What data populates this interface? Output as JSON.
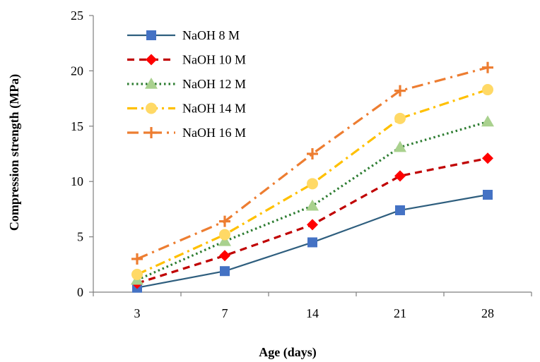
{
  "chart_data": {
    "type": "line",
    "title": "",
    "xlabel": "Age (days)",
    "ylabel": "Compression strength (MPa)",
    "categories": [
      "3",
      "7",
      "14",
      "21",
      "28"
    ],
    "ylim": [
      0,
      25
    ],
    "yticks": [
      "0",
      "5",
      "10",
      "15",
      "20",
      "25"
    ],
    "grid": false,
    "legend_position": "top-left",
    "series": [
      {
        "name": "NaOH 8 M",
        "values": [
          0.4,
          1.9,
          4.5,
          7.4,
          8.8
        ],
        "color": "#2E5E7E",
        "marker": "square",
        "marker_color": "#4472C4",
        "line_style": "solid"
      },
      {
        "name": "NaOH 10 M",
        "values": [
          0.8,
          3.3,
          6.1,
          10.5,
          12.1
        ],
        "color": "#C00000",
        "marker": "diamond",
        "marker_color": "#FF0000",
        "line_style": "dash"
      },
      {
        "name": "NaOH 12 M",
        "values": [
          1.1,
          4.6,
          7.8,
          13.1,
          15.4
        ],
        "color": "#2E7D32",
        "marker": "triangle",
        "marker_color": "#A9D18E",
        "line_style": "dot"
      },
      {
        "name": "NaOH 14 M",
        "values": [
          1.6,
          5.2,
          9.8,
          15.7,
          18.3
        ],
        "color": "#FFC000",
        "marker": "circle",
        "marker_color": "#FFD966",
        "line_style": "dashdot"
      },
      {
        "name": "NaOH 16 M",
        "values": [
          3.0,
          6.4,
          12.5,
          18.2,
          20.3
        ],
        "color": "#ED7D31",
        "marker": "plus",
        "marker_color": "#ED7D31",
        "line_style": "longdashdot"
      }
    ]
  }
}
